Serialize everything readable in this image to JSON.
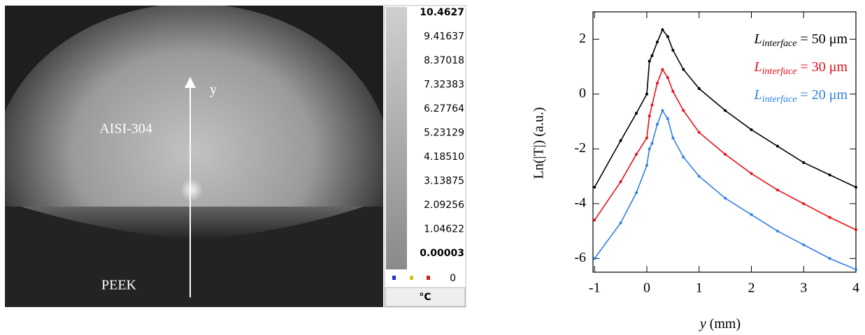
{
  "thermal_image": {
    "labels": {
      "upper": "AISI-304",
      "lower": "PEEK",
      "axis": "y"
    },
    "colorbar": {
      "ticks": [
        10.4627,
        9.41637,
        8.37018,
        7.32383,
        6.27764,
        5.23129,
        4.1851,
        3.13875,
        2.09256,
        1.04622,
        3e-05
      ],
      "tick_labels": [
        "10.4627",
        "9.41637",
        "8.37018",
        "7.32383",
        "6.27764",
        "5.23129",
        "4.18510",
        "3.13875",
        "2.09256",
        "1.04622",
        "0.00003"
      ],
      "marker_label": "0",
      "unit": "°C"
    }
  },
  "chart_data": {
    "type": "line",
    "xlabel": "y (mm)",
    "ylabel": "Ln(|T|) (a.u.)",
    "x": [
      -1,
      -0.5,
      -0.2,
      0,
      0.05,
      0.1,
      0.2,
      0.3,
      0.4,
      0.5,
      0.7,
      1,
      1.5,
      2,
      2.5,
      3,
      3.5,
      4
    ],
    "series": [
      {
        "name": "Linterface = 50 μm",
        "color": "#000000",
        "values": [
          -3.4,
          -1.7,
          -0.7,
          0.0,
          1.2,
          1.4,
          1.9,
          2.35,
          2.1,
          1.6,
          0.9,
          0.2,
          -0.6,
          -1.3,
          -1.9,
          -2.5,
          -2.95,
          -3.4
        ]
      },
      {
        "name": "Linterface = 30 μm",
        "color": "#e8101a",
        "values": [
          -4.6,
          -3.2,
          -2.2,
          -1.6,
          -0.8,
          -0.4,
          0.4,
          0.9,
          0.6,
          0.1,
          -0.6,
          -1.4,
          -2.2,
          -2.9,
          -3.5,
          -4.0,
          -4.5,
          -4.95
        ]
      },
      {
        "name": "Linterface = 20 μm",
        "color": "#2f7fe6",
        "values": [
          -6.0,
          -4.7,
          -3.6,
          -2.6,
          -2.0,
          -1.8,
          -1.1,
          -0.6,
          -0.9,
          -1.6,
          -2.3,
          -3.0,
          -3.8,
          -4.4,
          -5.0,
          -5.5,
          -6.0,
          -6.4
        ]
      }
    ],
    "xlim": [
      -1.03,
      4.0
    ],
    "ylim": [
      -6.5,
      3.0
    ],
    "xticks": [
      -1,
      0,
      1,
      2,
      3,
      4
    ],
    "yticks": [
      -6,
      -4,
      -2,
      0,
      2
    ],
    "legend": "upper right"
  }
}
